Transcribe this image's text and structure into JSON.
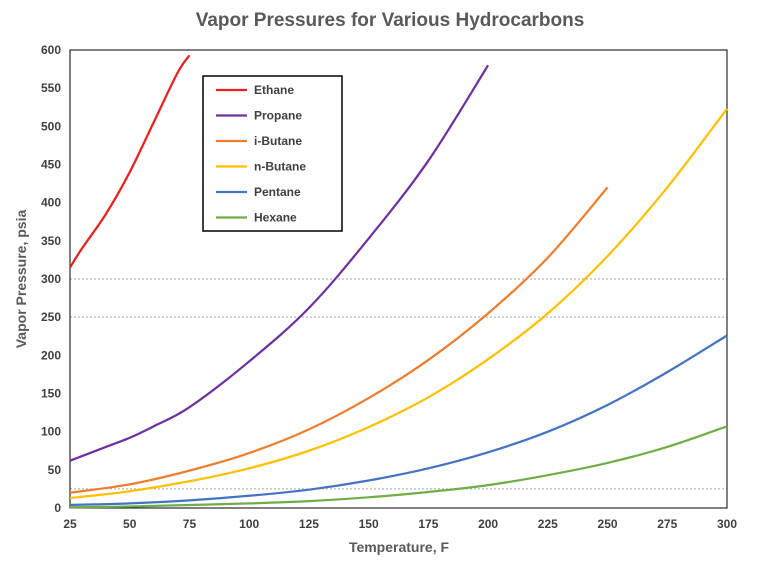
{
  "chart_data": {
    "type": "line",
    "title": "Vapor Pressures for Various Hydrocarbons",
    "xlabel": "Temperature, F",
    "ylabel": "Vapor Pressure, psia",
    "xlim": [
      25,
      300
    ],
    "ylim": [
      0,
      600
    ],
    "xticks": [
      25,
      50,
      75,
      100,
      125,
      150,
      175,
      200,
      225,
      250,
      275,
      300
    ],
    "yticks": [
      0,
      50,
      100,
      150,
      200,
      250,
      300,
      350,
      400,
      450,
      500,
      550,
      600
    ],
    "gridlines_y": [
      25,
      250,
      300
    ],
    "legend_position": "top-left",
    "series": [
      {
        "name": "Ethane",
        "color": "#e8201f",
        "x": [
          25,
          30,
          40,
          50,
          60,
          70,
          75
        ],
        "y": [
          315,
          340,
          385,
          440,
          505,
          570,
          593
        ]
      },
      {
        "name": "Propane",
        "color": "#7030a0",
        "x": [
          25,
          40,
          50,
          60,
          75,
          100,
          125,
          150,
          175,
          200
        ],
        "y": [
          62,
          80,
          92,
          107,
          132,
          192,
          262,
          353,
          455,
          580
        ]
      },
      {
        "name": "i-Butane",
        "color": "#ed7d31",
        "x": [
          25,
          50,
          75,
          100,
          125,
          150,
          175,
          200,
          225,
          250
        ],
        "y": [
          20,
          31,
          49,
          72,
          103,
          144,
          194,
          255,
          328,
          420
        ]
      },
      {
        "name": "n-Butane",
        "color": "#ffc000",
        "x": [
          25,
          50,
          75,
          100,
          125,
          150,
          175,
          200,
          225,
          250,
          275,
          300
        ],
        "y": [
          13,
          22,
          35,
          52,
          75,
          106,
          145,
          195,
          255,
          330,
          420,
          523
        ]
      },
      {
        "name": "Pentane",
        "color": "#4472c4",
        "x": [
          25,
          50,
          75,
          100,
          125,
          150,
          175,
          200,
          225,
          250,
          275,
          300
        ],
        "y": [
          4,
          6,
          10,
          16,
          24,
          36,
          52,
          73,
          100,
          135,
          178,
          226
        ]
      },
      {
        "name": "Hexane",
        "color": "#70ad47",
        "x": [
          25,
          50,
          75,
          100,
          125,
          150,
          175,
          200,
          225,
          250,
          275,
          300
        ],
        "y": [
          1,
          2,
          4,
          6,
          9,
          14,
          21,
          30,
          43,
          59,
          80,
          107
        ]
      }
    ]
  }
}
